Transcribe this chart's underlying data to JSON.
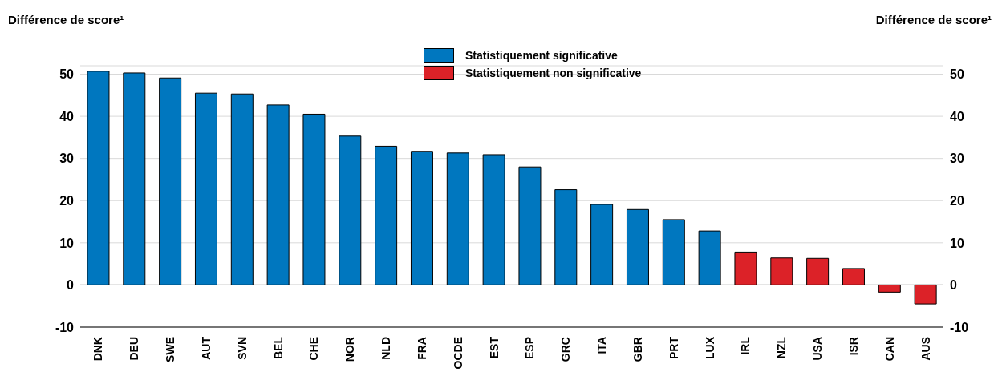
{
  "chart_data": {
    "type": "bar",
    "stacked": true,
    "ylabel": "Différence de score¹",
    "y2label": "Différence de score¹",
    "categories": [
      "DNK",
      "DEU",
      "SWE",
      "AUT",
      "SVN",
      "BEL",
      "CHE",
      "NOR",
      "NLD",
      "FRA",
      "OCDE",
      "EST",
      "ESP",
      "GRC",
      "ITA",
      "GBR",
      "PRT",
      "LUX",
      "IRL",
      "NZL",
      "USA",
      "ISR",
      "CAN",
      "AUS"
    ],
    "series": [
      {
        "name": "Statistiquement significative",
        "color": "#0077bf",
        "values": [
          50.7,
          50.3,
          49.1,
          45.5,
          45.3,
          42.7,
          40.5,
          35.3,
          32.9,
          31.7,
          31.3,
          30.9,
          28.0,
          22.6,
          19.1,
          17.9,
          15.5,
          12.8,
          null,
          null,
          null,
          null,
          null,
          null
        ]
      },
      {
        "name": "Statistiquement non significative",
        "color": "#dc2228",
        "values": [
          null,
          null,
          null,
          null,
          null,
          null,
          null,
          null,
          null,
          null,
          null,
          null,
          null,
          null,
          null,
          null,
          null,
          null,
          7.8,
          6.4,
          6.3,
          3.9,
          -1.7,
          -4.5
        ]
      }
    ],
    "ylim": [
      -10,
      52
    ],
    "yticks": [
      -10,
      0,
      10,
      20,
      30,
      40,
      50
    ],
    "y2lim": [
      -10,
      52
    ],
    "y2ticks": [
      -10,
      0,
      10,
      20,
      30,
      40,
      50
    ],
    "grid": "y",
    "legend": "top"
  }
}
